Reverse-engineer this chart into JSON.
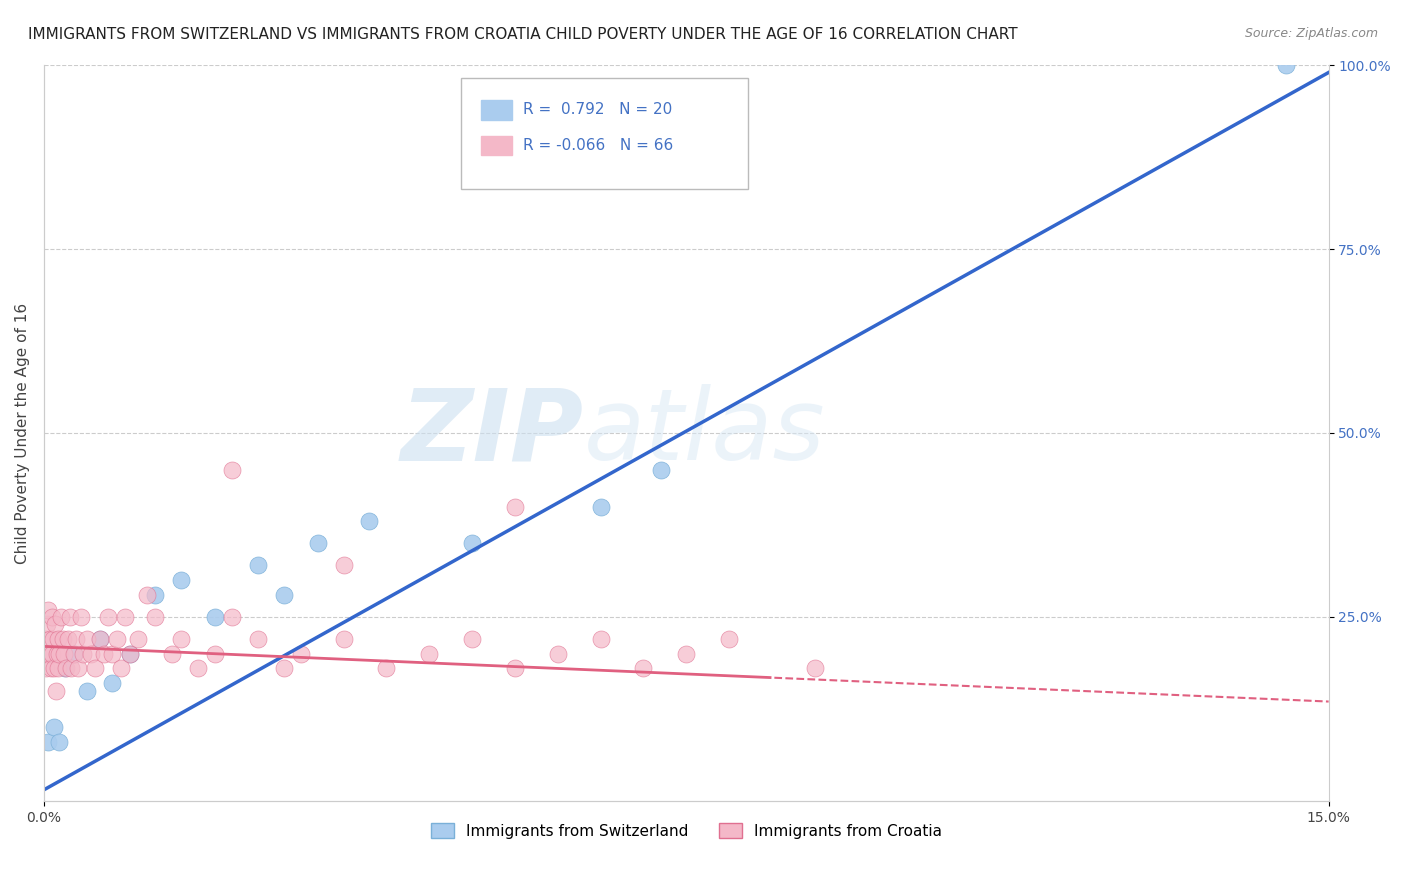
{
  "title": "IMMIGRANTS FROM SWITZERLAND VS IMMIGRANTS FROM CROATIA CHILD POVERTY UNDER THE AGE OF 16 CORRELATION CHART",
  "source": "Source: ZipAtlas.com",
  "ylabel": "Child Poverty Under the Age of 16",
  "xlim": [
    0.0,
    15.0
  ],
  "ylim": [
    0.0,
    100.0
  ],
  "ytick_vals_right": [
    100.0,
    75.0,
    50.0,
    25.0
  ],
  "grid_color": "#cccccc",
  "background_color": "#ffffff",
  "watermark_zip": "ZIP",
  "watermark_atlas": "atlas",
  "series_switzerland": {
    "name": "Immigrants from Switzerland",
    "color": "#aaccee",
    "edge_color": "#7ab0d8",
    "R": 0.792,
    "N": 20,
    "x": [
      0.05,
      0.12,
      0.18,
      0.25,
      0.35,
      0.5,
      0.65,
      0.8,
      1.0,
      1.3,
      1.6,
      2.0,
      2.5,
      2.8,
      3.2,
      3.8,
      5.0,
      6.5,
      7.2,
      14.5
    ],
    "y": [
      8.0,
      10.0,
      8.0,
      18.0,
      20.0,
      15.0,
      22.0,
      16.0,
      20.0,
      28.0,
      30.0,
      25.0,
      32.0,
      28.0,
      35.0,
      38.0,
      35.0,
      40.0,
      45.0,
      100.0
    ]
  },
  "series_croatia": {
    "name": "Immigrants from Croatia",
    "color": "#f4b8c8",
    "edge_color": "#e07090",
    "R": -0.066,
    "N": 66,
    "x": [
      0.01,
      0.02,
      0.03,
      0.04,
      0.05,
      0.06,
      0.07,
      0.08,
      0.09,
      0.1,
      0.11,
      0.12,
      0.13,
      0.14,
      0.15,
      0.16,
      0.17,
      0.18,
      0.2,
      0.22,
      0.24,
      0.26,
      0.28,
      0.3,
      0.32,
      0.35,
      0.38,
      0.4,
      0.43,
      0.46,
      0.5,
      0.55,
      0.6,
      0.65,
      0.7,
      0.75,
      0.8,
      0.85,
      0.9,
      0.95,
      1.0,
      1.1,
      1.2,
      1.3,
      1.5,
      1.6,
      1.8,
      2.0,
      2.2,
      2.5,
      2.8,
      3.0,
      3.5,
      4.0,
      4.5,
      5.0,
      5.5,
      6.0,
      6.5,
      7.0,
      7.5,
      8.0,
      5.5,
      9.0,
      2.2,
      3.5
    ],
    "y": [
      20.0,
      22.0,
      18.0,
      24.0,
      26.0,
      20.0,
      22.0,
      18.0,
      25.0,
      20.0,
      22.0,
      18.0,
      24.0,
      15.0,
      20.0,
      22.0,
      18.0,
      20.0,
      25.0,
      22.0,
      20.0,
      18.0,
      22.0,
      25.0,
      18.0,
      20.0,
      22.0,
      18.0,
      25.0,
      20.0,
      22.0,
      20.0,
      18.0,
      22.0,
      20.0,
      25.0,
      20.0,
      22.0,
      18.0,
      25.0,
      20.0,
      22.0,
      28.0,
      25.0,
      20.0,
      22.0,
      18.0,
      20.0,
      25.0,
      22.0,
      18.0,
      20.0,
      22.0,
      18.0,
      20.0,
      22.0,
      18.0,
      20.0,
      22.0,
      18.0,
      20.0,
      22.0,
      40.0,
      18.0,
      45.0,
      32.0
    ]
  },
  "legend": {
    "R_switzerland": "0.792",
    "N_switzerland": "20",
    "R_croatia": "-0.066",
    "N_croatia": "66"
  },
  "sw_regression": {
    "slope": 6.5,
    "intercept": 1.5
  },
  "cr_regression": {
    "slope": -0.5,
    "intercept": 21.0
  },
  "title_fontsize": 11,
  "source_fontsize": 9,
  "label_fontsize": 11,
  "tick_fontsize": 10
}
